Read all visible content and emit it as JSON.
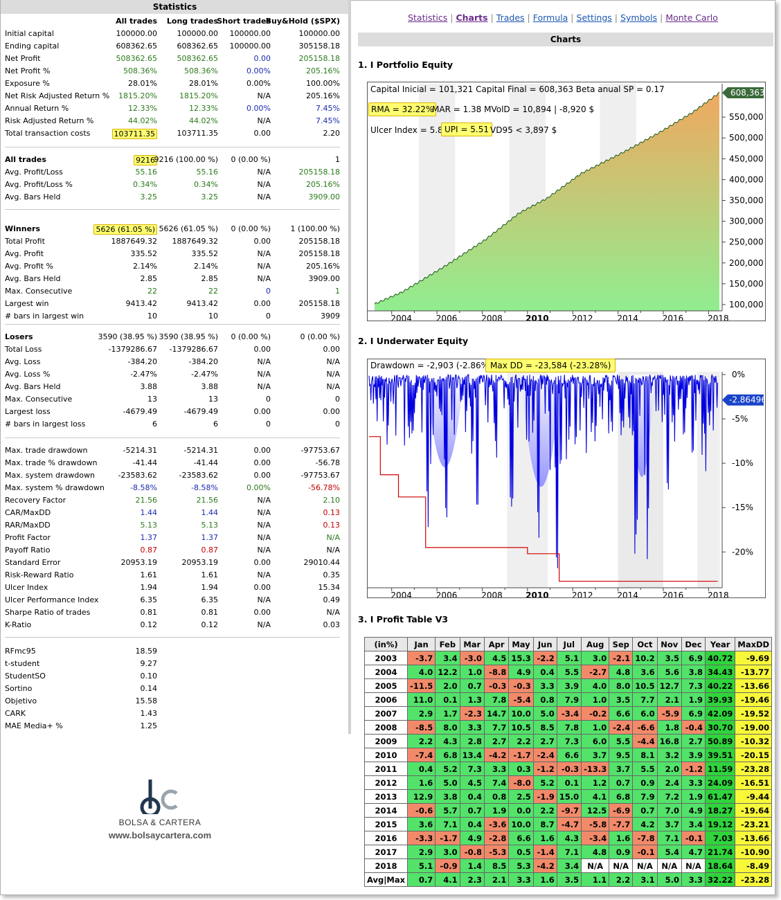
{
  "stats": {
    "title": "Statistics",
    "headers": [
      "",
      "All trades",
      "Long trades",
      "Short trades",
      "Buy&Hold ($SPX)"
    ],
    "rows": [
      [
        "Initial capital",
        "100000.00",
        "100000.00",
        "100000.00",
        "100000.00"
      ],
      [
        "Ending capital",
        "608362.65",
        "608362.65",
        "100000.00",
        "305158.18"
      ],
      [
        "Net Profit",
        "508362.65",
        "508362.65",
        "0.00",
        "205158.18"
      ],
      [
        "Net Profit %",
        "508.36%",
        "508.36%",
        "0.00%",
        "205.16%"
      ],
      [
        "Exposure %",
        "28.01%",
        "28.01%",
        "0.00%",
        "100.00%"
      ],
      [
        "Net Risk Adjusted Return %",
        "1815.20%",
        "1815.20%",
        "N/A",
        "205.16%"
      ],
      [
        "Annual Return %",
        "12.33%",
        "12.33%",
        "0.00%",
        "7.45%"
      ],
      [
        "Risk Adjusted Return %",
        "44.02%",
        "44.02%",
        "N/A",
        "7.45%"
      ],
      [
        "Total transaction costs",
        "103711.35",
        "103711.35",
        "0.00",
        "2.20"
      ],
      [
        "All trades",
        "9216",
        "9216 (100.00 %)",
        "0 (0.00 %)",
        "1"
      ],
      [
        "Avg. Profit/Loss",
        "55.16",
        "55.16",
        "N/A",
        "205158.18"
      ],
      [
        "Avg. Profit/Loss %",
        "0.34%",
        "0.34%",
        "N/A",
        "205.16%"
      ],
      [
        "Avg. Bars Held",
        "3.25",
        "3.25",
        "N/A",
        "3909.00"
      ],
      [
        "Winners",
        "5626 (61.05 %)",
        "5626 (61.05 %)",
        "0 (0.00 %)",
        "1 (100.00 %)"
      ],
      [
        "Total Profit",
        "1887649.32",
        "1887649.32",
        "0.00",
        "205158.18"
      ],
      [
        "Avg. Profit",
        "335.52",
        "335.52",
        "N/A",
        "205158.18"
      ],
      [
        "Avg. Profit %",
        "2.14%",
        "2.14%",
        "N/A",
        "205.16%"
      ],
      [
        "Avg. Bars Held",
        "2.85",
        "2.85",
        "N/A",
        "3909.00"
      ],
      [
        "Max. Consecutive",
        "22",
        "22",
        "0",
        "1"
      ],
      [
        "Largest win",
        "9413.42",
        "9413.42",
        "0.00",
        "205158.18"
      ],
      [
        "# bars in largest win",
        "10",
        "10",
        "0",
        "3909"
      ],
      [
        "Losers",
        "3590 (38.95 %)",
        "3590 (38.95 %)",
        "0 (0.00 %)",
        "0 (0.00 %)"
      ],
      [
        "Total Loss",
        "-1379286.67",
        "-1379286.67",
        "0.00",
        "0.00"
      ],
      [
        "Avg. Loss",
        "-384.20",
        "-384.20",
        "N/A",
        "N/A"
      ],
      [
        "Avg. Loss %",
        "-2.47%",
        "-2.47%",
        "N/A",
        "N/A"
      ],
      [
        "Avg. Bars Held",
        "3.88",
        "3.88",
        "N/A",
        "N/A"
      ],
      [
        "Max. Consecutive",
        "13",
        "13",
        "0",
        "0"
      ],
      [
        "Largest loss",
        "-4679.49",
        "-4679.49",
        "0.00",
        "0.00"
      ],
      [
        "# bars in largest loss",
        "6",
        "6",
        "0",
        "0"
      ],
      [
        "Max. trade drawdown",
        "-5214.31",
        "-5214.31",
        "0.00",
        "-97753.67"
      ],
      [
        "Max. trade % drawdown",
        "-41.44",
        "-41.44",
        "0.00",
        "-56.78"
      ],
      [
        "Max. system drawdown",
        "-23583.62",
        "-23583.62",
        "0.00",
        "-97753.67"
      ],
      [
        "Max. system % drawdown",
        "-8.58%",
        "-8.58%",
        "0.00%",
        "-56.78%"
      ],
      [
        "Recovery Factor",
        "21.56",
        "21.56",
        "N/A",
        "2.10"
      ],
      [
        "CAR/MaxDD",
        "1.44",
        "1.44",
        "N/A",
        "0.13"
      ],
      [
        "RAR/MaxDD",
        "5.13",
        "5.13",
        "N/A",
        "0.13"
      ],
      [
        "Profit Factor",
        "1.37",
        "1.37",
        "N/A",
        "N/A"
      ],
      [
        "Payoff Ratio",
        "0.87",
        "0.87",
        "N/A",
        "N/A"
      ],
      [
        "Standard Error",
        "20953.19",
        "20953.19",
        "0.00",
        "29010.44"
      ],
      [
        "Risk-Reward Ratio",
        "1.61",
        "1.61",
        "N/A",
        "0.35"
      ],
      [
        "Ulcer Index",
        "1.94",
        "1.94",
        "0.00",
        "15.34"
      ],
      [
        "Ulcer Performance Index",
        "6.35",
        "6.35",
        "N/A",
        "0.49"
      ],
      [
        "Sharpe Ratio of trades",
        "0.81",
        "0.81",
        "0.00",
        "N/A"
      ],
      [
        "K-Ratio",
        "0.12",
        "0.12",
        "N/A",
        "0.03"
      ],
      [
        "RFmc95",
        "18.59"
      ],
      [
        "t-student",
        "9.27"
      ],
      [
        "StudentSO",
        "0.10"
      ],
      [
        "Sortino",
        "0.14"
      ],
      [
        "Objetivo",
        "15.58"
      ],
      [
        "CARK",
        "1.43"
      ],
      [
        "MAE Media+ %",
        "1.25"
      ]
    ]
  },
  "logo": {
    "mark": "bc",
    "name": "BOLSA & CARTERA",
    "url": "www.bolsaycartera.com"
  },
  "nav": [
    "Statistics",
    "Charts",
    "Trades",
    "Formula",
    "Settings",
    "Symbols",
    "Monte Carlo"
  ],
  "charts_title": "Charts",
  "sections": {
    "s1": "1. I Portfolio Equity",
    "s2": "2. I Underwater Equity",
    "s3": "3. I Profit Table V3"
  },
  "equity": {
    "line1": "Capital Inicial = 101,321  Capital Final = 608,363  Beta anual SP = 0.17",
    "rma": "RMA = 32.22%",
    "mar": "MAR = 1.38  MVolD = 10,894 | -8,920 $",
    "ulcer": "Ulcer Index = 5.85",
    "upi": "UPI = 5.51",
    "vd95": "VD95 < 3,897 $",
    "last": "608,363",
    "yticks": [
      "550,000",
      "500,000",
      "450,000",
      "400,000",
      "350,000",
      "300,000",
      "250,000",
      "200,000",
      "150,000",
      "100,000"
    ],
    "xticks": [
      "2004",
      "2006",
      "2008",
      "2010",
      "2012",
      "2014",
      "2016",
      "2018"
    ],
    "color_fill_top": "#f0a860",
    "color_fill_bottom": "#90ee90"
  },
  "underwater": {
    "dd": "Drawdown = -2,903 (-2.86%)",
    "maxdd": "Max DD = -23,584 (-23.28%)",
    "last": "-2.86496",
    "yticks": [
      "0%",
      "-5%",
      "-10%",
      "-15%",
      "-20%"
    ],
    "xticks": [
      "2004",
      "2006",
      "2008",
      "2010",
      "2012",
      "2014",
      "2016",
      "2018"
    ]
  },
  "ptable": {
    "headers": [
      "(in%)",
      "Jan",
      "Feb",
      "Mar",
      "Apr",
      "May",
      "Jun",
      "Jul",
      "Aug",
      "Sep",
      "Oct",
      "Nov",
      "Dec",
      "Year",
      "MaxDD"
    ],
    "rows": [
      [
        "2003",
        "-3.7",
        "3.4",
        "-3.0",
        "4.5",
        "15.3",
        "-2.2",
        "5.1",
        "3.0",
        "-2.1",
        "10.2",
        "3.5",
        "6.9",
        "40.72",
        "-9.69"
      ],
      [
        "2004",
        "4.0",
        "12.2",
        "1.0",
        "-8.8",
        "4.9",
        "0.4",
        "5.5",
        "-2.7",
        "4.8",
        "3.6",
        "5.6",
        "3.8",
        "34.43",
        "-13.77"
      ],
      [
        "2005",
        "-11.5",
        "2.0",
        "0.7",
        "-0.3",
        "-0.3",
        "3.3",
        "3.9",
        "4.0",
        "8.0",
        "10.5",
        "12.7",
        "7.3",
        "40.22",
        "-13.66"
      ],
      [
        "2006",
        "11.0",
        "0.1",
        "1.3",
        "7.8",
        "-5.4",
        "0.8",
        "7.9",
        "1.0",
        "3.5",
        "7.7",
        "2.1",
        "1.9",
        "39.93",
        "-19.46"
      ],
      [
        "2007",
        "2.9",
        "1.7",
        "-2.3",
        "14.7",
        "10.0",
        "5.0",
        "-3.4",
        "-0.2",
        "6.6",
        "6.0",
        "-5.9",
        "6.9",
        "42.09",
        "-19.52"
      ],
      [
        "2008",
        "-8.5",
        "8.0",
        "3.3",
        "7.7",
        "10.5",
        "8.5",
        "7.8",
        "1.0",
        "-2.4",
        "-6.6",
        "1.8",
        "-0.4",
        "30.70",
        "-19.00"
      ],
      [
        "2009",
        "2.2",
        "4.3",
        "2.8",
        "2.7",
        "2.2",
        "2.7",
        "7.3",
        "6.0",
        "5.5",
        "-4.4",
        "16.8",
        "2.7",
        "50.89",
        "-10.32"
      ],
      [
        "2010",
        "-7.4",
        "6.8",
        "13.4",
        "-4.2",
        "-1.7",
        "-2.4",
        "6.6",
        "3.7",
        "9.5",
        "8.1",
        "3.2",
        "3.9",
        "39.51",
        "-20.15"
      ],
      [
        "2011",
        "0.4",
        "5.2",
        "7.3",
        "3.3",
        "0.3",
        "-1.2",
        "-0.3",
        "-13.3",
        "3.7",
        "5.5",
        "2.0",
        "-1.2",
        "11.59",
        "-23.28"
      ],
      [
        "2012",
        "1.6",
        "5.0",
        "4.5",
        "7.4",
        "-8.0",
        "5.2",
        "0.1",
        "1.2",
        "0.7",
        "0.9",
        "2.4",
        "3.3",
        "24.09",
        "-16.51"
      ],
      [
        "2013",
        "12.9",
        "3.8",
        "0.4",
        "0.8",
        "2.5",
        "-1.9",
        "15.0",
        "4.1",
        "6.8",
        "7.9",
        "7.2",
        "1.9",
        "61.47",
        "-9.44"
      ],
      [
        "2014",
        "-0.6",
        "5.7",
        "0.7",
        "1.9",
        "0.0",
        "2.2",
        "-9.7",
        "12.5",
        "-6.9",
        "0.7",
        "7.0",
        "4.9",
        "18.27",
        "-19.64"
      ],
      [
        "2015",
        "3.6",
        "7.1",
        "0.4",
        "-3.6",
        "10.0",
        "8.7",
        "-4.7",
        "-5.8",
        "-7.7",
        "4.2",
        "3.7",
        "3.4",
        "19.12",
        "-23.21"
      ],
      [
        "2016",
        "-3.3",
        "-1.7",
        "4.9",
        "-2.8",
        "6.6",
        "1.6",
        "4.3",
        "-3.4",
        "1.6",
        "-7.8",
        "7.1",
        "-0.1",
        "7.03",
        "-13.66"
      ],
      [
        "2017",
        "2.9",
        "3.0",
        "-0.8",
        "-5.3",
        "0.5",
        "-1.4",
        "7.1",
        "4.8",
        "0.9",
        "-0.1",
        "5.4",
        "4.7",
        "21.74",
        "-10.90"
      ],
      [
        "2018",
        "5.1",
        "-0.9",
        "1.4",
        "8.5",
        "5.3",
        "-4.2",
        "3.4",
        "N/A",
        "N/A",
        "N/A",
        "N/A",
        "N/A",
        "18.64",
        "-8.49"
      ],
      [
        "Avg|Max",
        "0.7",
        "4.1",
        "2.3",
        "2.1",
        "3.3",
        "1.6",
        "3.5",
        "1.1",
        "2.2",
        "3.1",
        "5.0",
        "3.3",
        "32.22",
        "-23.28"
      ]
    ]
  }
}
